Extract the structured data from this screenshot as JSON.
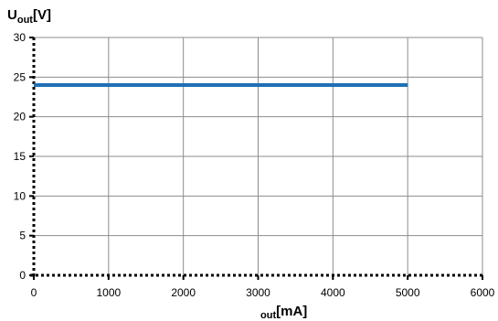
{
  "chart_data": {
    "type": "line",
    "ylabel": {
      "main": "U",
      "sub": "out",
      "suffix": "[V]"
    },
    "xlabel": {
      "main": "",
      "sub": "out",
      "suffix": "[mA]"
    },
    "xlim": [
      0,
      6000
    ],
    "ylim": [
      0,
      30
    ],
    "xticks": [
      0,
      1000,
      2000,
      3000,
      4000,
      5000,
      6000
    ],
    "yticks": [
      0,
      5,
      10,
      15,
      20,
      25,
      30
    ],
    "grid": true,
    "series": [
      {
        "x": [
          0,
          5000
        ],
        "y": [
          24,
          24
        ],
        "color": "#1f6fb5"
      }
    ]
  }
}
